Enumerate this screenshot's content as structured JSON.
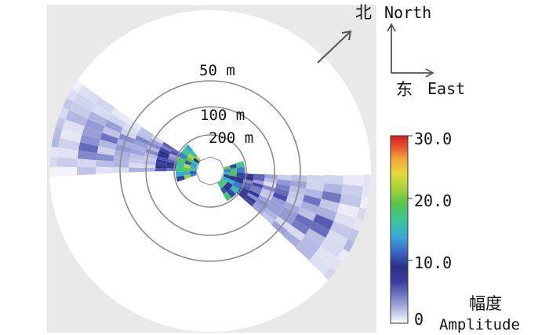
{
  "compass": {
    "north_cn": "北",
    "north_en": "North",
    "east_cn": "东",
    "east_en": "East"
  },
  "colorbar": {
    "label_cn": "幅度",
    "label_en": "Amplitude",
    "ticks": [
      "30.0",
      "20.0",
      "10.0",
      "0"
    ],
    "colors": [
      "#ffffff",
      "#9aa0d8",
      "#3c3ea0",
      "#2a2f86",
      "#3a66c4",
      "#39a7d8",
      "#3cc79a",
      "#5cc34a",
      "#a6d43a",
      "#e8d83a",
      "#f1a23a",
      "#e8482a",
      "#d21f1f"
    ]
  },
  "chart_data": {
    "type": "heatmap",
    "coordinate_system": "polar",
    "range_rings": [
      "50 m",
      "100 m",
      "200 m"
    ],
    "value_range": [
      0,
      30
    ],
    "colorbar_ticks": [
      0,
      10,
      20,
      30
    ],
    "beam_lobes": [
      {
        "direction": "west-northwest",
        "typical_amplitude": 6,
        "peak_amplitude": 22
      },
      {
        "direction": "east-southeast",
        "typical_amplitude": 6,
        "peak_amplitude": 20
      }
    ]
  }
}
